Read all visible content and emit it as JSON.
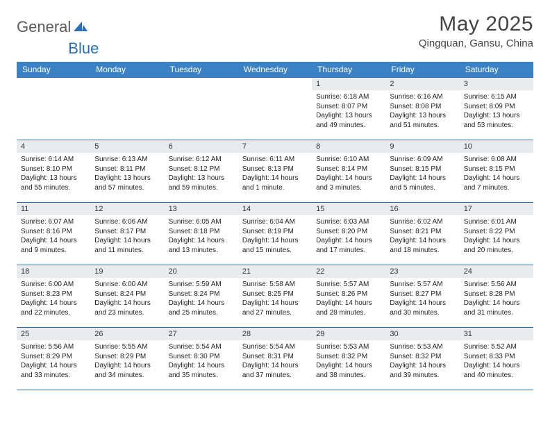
{
  "logo": {
    "general": "General",
    "blue": "Blue"
  },
  "title": "May 2025",
  "location": "Qingquan, Gansu, China",
  "colors": {
    "header_bg": "#3b82c4",
    "header_text": "#ffffff",
    "border": "#2a6fb5",
    "daynum_bg": "#e8ecef",
    "logo_gray": "#5a5a5a",
    "logo_blue": "#2a6fb5",
    "page_bg": "#ffffff"
  },
  "dayHeaders": [
    "Sunday",
    "Monday",
    "Tuesday",
    "Wednesday",
    "Thursday",
    "Friday",
    "Saturday"
  ],
  "weeks": [
    [
      null,
      null,
      null,
      null,
      {
        "n": "1",
        "sr": "6:18 AM",
        "ss": "8:07 PM",
        "dl": "13 hours and 49 minutes."
      },
      {
        "n": "2",
        "sr": "6:16 AM",
        "ss": "8:08 PM",
        "dl": "13 hours and 51 minutes."
      },
      {
        "n": "3",
        "sr": "6:15 AM",
        "ss": "8:09 PM",
        "dl": "13 hours and 53 minutes."
      }
    ],
    [
      {
        "n": "4",
        "sr": "6:14 AM",
        "ss": "8:10 PM",
        "dl": "13 hours and 55 minutes."
      },
      {
        "n": "5",
        "sr": "6:13 AM",
        "ss": "8:11 PM",
        "dl": "13 hours and 57 minutes."
      },
      {
        "n": "6",
        "sr": "6:12 AM",
        "ss": "8:12 PM",
        "dl": "13 hours and 59 minutes."
      },
      {
        "n": "7",
        "sr": "6:11 AM",
        "ss": "8:13 PM",
        "dl": "14 hours and 1 minute."
      },
      {
        "n": "8",
        "sr": "6:10 AM",
        "ss": "8:14 PM",
        "dl": "14 hours and 3 minutes."
      },
      {
        "n": "9",
        "sr": "6:09 AM",
        "ss": "8:15 PM",
        "dl": "14 hours and 5 minutes."
      },
      {
        "n": "10",
        "sr": "6:08 AM",
        "ss": "8:15 PM",
        "dl": "14 hours and 7 minutes."
      }
    ],
    [
      {
        "n": "11",
        "sr": "6:07 AM",
        "ss": "8:16 PM",
        "dl": "14 hours and 9 minutes."
      },
      {
        "n": "12",
        "sr": "6:06 AM",
        "ss": "8:17 PM",
        "dl": "14 hours and 11 minutes."
      },
      {
        "n": "13",
        "sr": "6:05 AM",
        "ss": "8:18 PM",
        "dl": "14 hours and 13 minutes."
      },
      {
        "n": "14",
        "sr": "6:04 AM",
        "ss": "8:19 PM",
        "dl": "14 hours and 15 minutes."
      },
      {
        "n": "15",
        "sr": "6:03 AM",
        "ss": "8:20 PM",
        "dl": "14 hours and 17 minutes."
      },
      {
        "n": "16",
        "sr": "6:02 AM",
        "ss": "8:21 PM",
        "dl": "14 hours and 18 minutes."
      },
      {
        "n": "17",
        "sr": "6:01 AM",
        "ss": "8:22 PM",
        "dl": "14 hours and 20 minutes."
      }
    ],
    [
      {
        "n": "18",
        "sr": "6:00 AM",
        "ss": "8:23 PM",
        "dl": "14 hours and 22 minutes."
      },
      {
        "n": "19",
        "sr": "6:00 AM",
        "ss": "8:24 PM",
        "dl": "14 hours and 23 minutes."
      },
      {
        "n": "20",
        "sr": "5:59 AM",
        "ss": "8:24 PM",
        "dl": "14 hours and 25 minutes."
      },
      {
        "n": "21",
        "sr": "5:58 AM",
        "ss": "8:25 PM",
        "dl": "14 hours and 27 minutes."
      },
      {
        "n": "22",
        "sr": "5:57 AM",
        "ss": "8:26 PM",
        "dl": "14 hours and 28 minutes."
      },
      {
        "n": "23",
        "sr": "5:57 AM",
        "ss": "8:27 PM",
        "dl": "14 hours and 30 minutes."
      },
      {
        "n": "24",
        "sr": "5:56 AM",
        "ss": "8:28 PM",
        "dl": "14 hours and 31 minutes."
      }
    ],
    [
      {
        "n": "25",
        "sr": "5:56 AM",
        "ss": "8:29 PM",
        "dl": "14 hours and 33 minutes."
      },
      {
        "n": "26",
        "sr": "5:55 AM",
        "ss": "8:29 PM",
        "dl": "14 hours and 34 minutes."
      },
      {
        "n": "27",
        "sr": "5:54 AM",
        "ss": "8:30 PM",
        "dl": "14 hours and 35 minutes."
      },
      {
        "n": "28",
        "sr": "5:54 AM",
        "ss": "8:31 PM",
        "dl": "14 hours and 37 minutes."
      },
      {
        "n": "29",
        "sr": "5:53 AM",
        "ss": "8:32 PM",
        "dl": "14 hours and 38 minutes."
      },
      {
        "n": "30",
        "sr": "5:53 AM",
        "ss": "8:32 PM",
        "dl": "14 hours and 39 minutes."
      },
      {
        "n": "31",
        "sr": "5:52 AM",
        "ss": "8:33 PM",
        "dl": "14 hours and 40 minutes."
      }
    ]
  ],
  "labels": {
    "sunrise": "Sunrise:",
    "sunset": "Sunset:",
    "daylight": "Daylight:"
  }
}
